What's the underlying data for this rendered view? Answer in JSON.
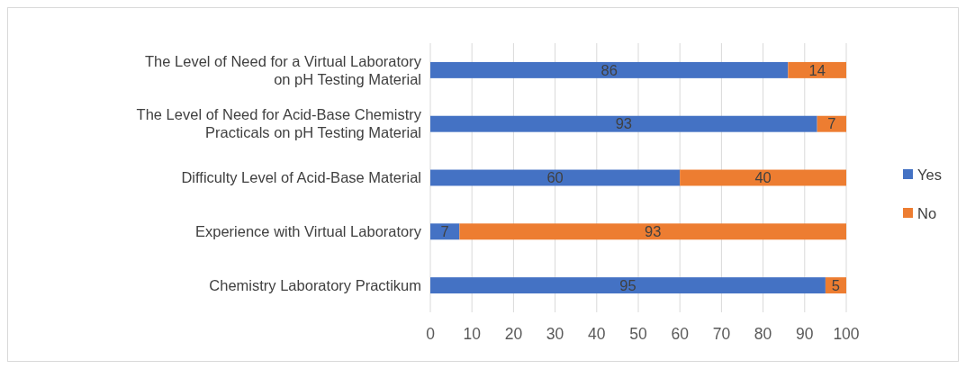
{
  "chart_data": {
    "type": "bar",
    "orientation": "horizontal",
    "stacked": true,
    "categories": [
      "The Level of Need for a Virtual Laboratory on pH Testing Material",
      "The Level of Need for Acid-Base Chemistry Practicals on pH Testing Material",
      "Difficulty Level of Acid-Base Material",
      "Experience with Virtual Laboratory",
      "Chemistry Laboratory Practikum"
    ],
    "series": [
      {
        "name": "Yes",
        "color": "#4472c4",
        "values": [
          86,
          93,
          60,
          7,
          95
        ]
      },
      {
        "name": "No",
        "color": "#ed7d31",
        "values": [
          14,
          7,
          40,
          93,
          5
        ]
      }
    ],
    "xlim": [
      0,
      100
    ],
    "xticks": [
      0,
      10,
      20,
      30,
      40,
      50,
      60,
      70,
      80,
      90,
      100
    ],
    "grid": "x",
    "legend": "right",
    "data_labels": true
  }
}
